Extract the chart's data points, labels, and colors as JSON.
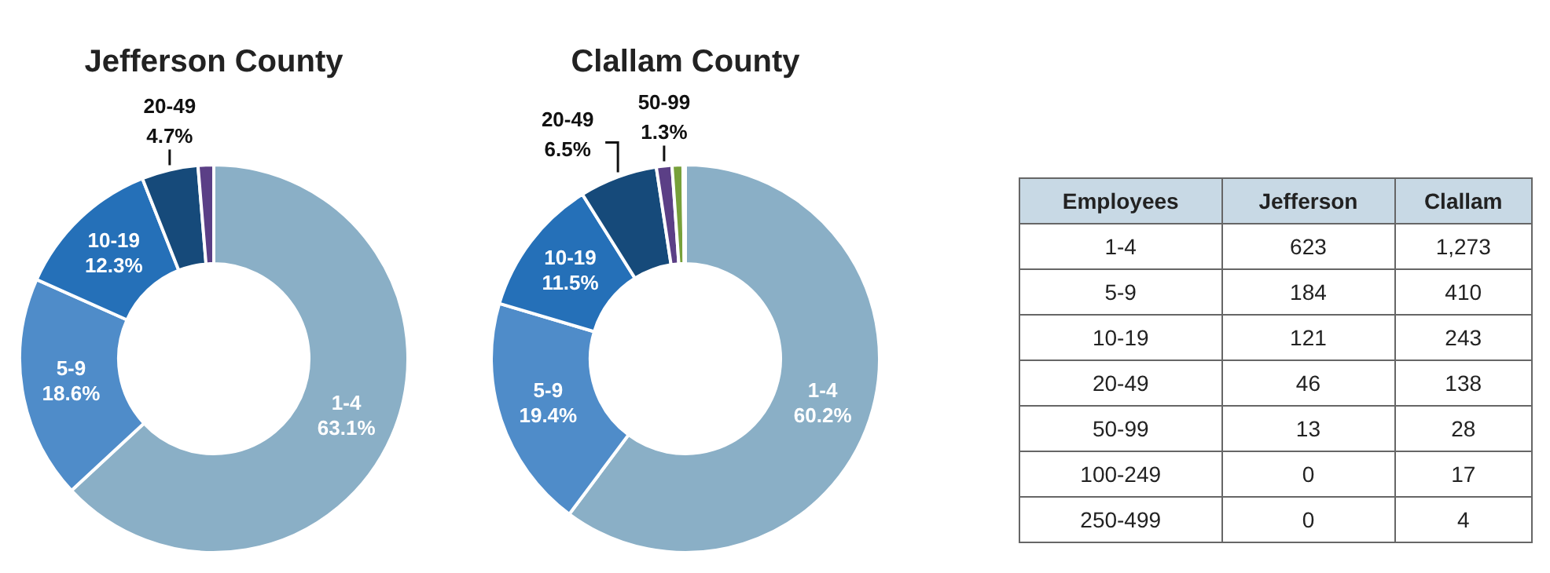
{
  "chart_data": [
    {
      "type": "donut",
      "title": "Jefferson County",
      "categories": [
        "1-4",
        "5-9",
        "10-19",
        "20-49",
        null
      ],
      "values": [
        63.1,
        18.6,
        12.3,
        4.7,
        1.3
      ],
      "colors": [
        "#8aafc6",
        "#4f8cc9",
        "#2570b8",
        "#164a7a",
        "#5b3f86"
      ],
      "value_labels": [
        "63.1%",
        "18.6%",
        "12.3%",
        "4.7%",
        null
      ]
    },
    {
      "type": "donut",
      "title": "Clallam County",
      "categories": [
        "1-4",
        "5-9",
        "10-19",
        "20-49",
        "50-99",
        null,
        null
      ],
      "values": [
        60.2,
        19.4,
        11.5,
        6.5,
        1.3,
        0.9,
        0.2
      ],
      "colors": [
        "#8aafc6",
        "#4f8cc9",
        "#2570b8",
        "#164a7a",
        "#5b3f86",
        "#77a03a",
        "#3d6e2a"
      ],
      "value_labels": [
        "60.2%",
        "19.4%",
        "11.5%",
        "6.5%",
        "1.3%",
        null,
        null
      ]
    },
    {
      "type": "other",
      "xlabel": "Employees",
      "categories": [
        "1-4",
        "5-9",
        "10-19",
        "20-49",
        "50-99",
        "100-249",
        "250-499"
      ],
      "data_labels": true,
      "series": [
        {
          "name": "Jefferson",
          "values": [
            623,
            184,
            121,
            46,
            13,
            0,
            0
          ]
        },
        {
          "name": "Clallam",
          "values": [
            1273,
            410,
            243,
            138,
            28,
            17,
            4
          ],
          "value_labels": [
            "1,273",
            "410",
            "243",
            "138",
            "28",
            "17",
            "4"
          ]
        }
      ]
    }
  ]
}
